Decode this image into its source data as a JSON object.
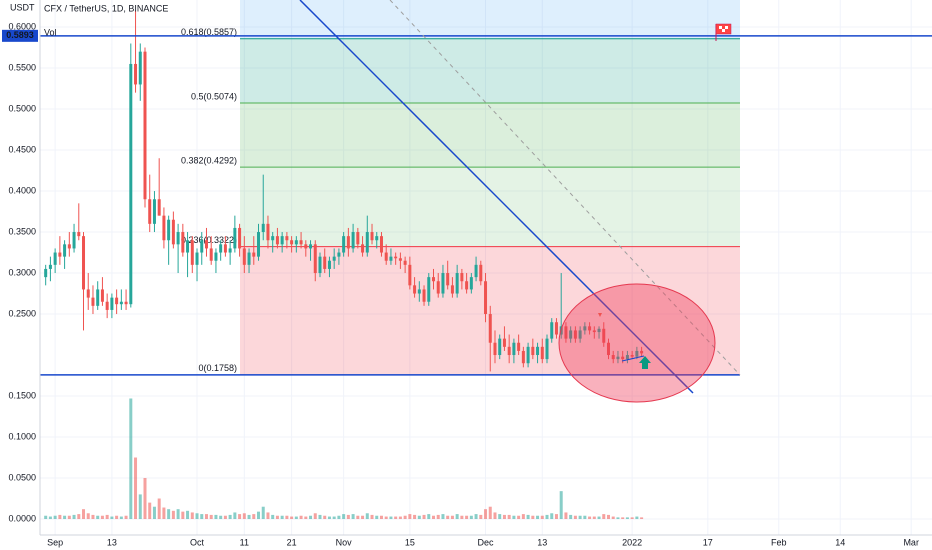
{
  "chart_data": {
    "type": "candlestick",
    "title": "CFX / TetherUS, 1D, BINANCE",
    "volume_label": "Vol",
    "y_unit": "USDT",
    "up_color": "#26a69a",
    "down_color": "#ef5350",
    "grid": true,
    "xlim": [
      -1.2,
      187.4
    ],
    "ylim": [
      -0.0195,
      0.633
    ],
    "xticks": [
      {
        "value": 2,
        "label": "Sep"
      },
      {
        "value": 14,
        "label": "13"
      },
      {
        "value": 32,
        "label": "Oct"
      },
      {
        "value": 42,
        "label": "11"
      },
      {
        "value": 52,
        "label": "21"
      },
      {
        "value": 63,
        "label": "Nov"
      },
      {
        "value": 77,
        "label": "15"
      },
      {
        "value": 93,
        "label": "Dec"
      },
      {
        "value": 105,
        "label": "13"
      },
      {
        "value": 124,
        "label": "2022"
      },
      {
        "value": 140,
        "label": "17"
      },
      {
        "value": 155,
        "label": "Feb"
      },
      {
        "value": 168,
        "label": "14"
      },
      {
        "value": 183,
        "label": "Mar"
      }
    ],
    "yticks": [
      {
        "value": 0,
        "label": "0.0000"
      },
      {
        "value": 0.05,
        "label": "0.0500"
      },
      {
        "value": 0.1,
        "label": "0.1000"
      },
      {
        "value": 0.15,
        "label": "0.1500"
      },
      {
        "value": 0.25,
        "label": "0.2500"
      },
      {
        "value": 0.3,
        "label": "0.3000"
      },
      {
        "value": 0.35,
        "label": "0.3500"
      },
      {
        "value": 0.4,
        "label": "0.4000"
      },
      {
        "value": 0.45,
        "label": "0.4500"
      },
      {
        "value": 0.5,
        "label": "0.5000"
      },
      {
        "value": 0.55,
        "label": "0.5500"
      },
      {
        "value": 0.6,
        "label": "0.6000"
      }
    ],
    "price_line": 0.5893,
    "price_line_color": "#1848cc",
    "fib": [
      {
        "value": 0.1758,
        "label": "0(0.1758)",
        "color": "#787b86",
        "band": "rgba(242,54,69,0.2)"
      },
      {
        "value": 0.3322,
        "label": "0.236(0.3322)",
        "color": "#f23645",
        "band": "rgba(76,175,80,0.15)"
      },
      {
        "value": 0.4292,
        "label": "0.382(0.4292)",
        "color": "#4caf50",
        "band": "rgba(76,175,80,0.2)"
      },
      {
        "value": 0.5074,
        "label": "0.5(0.5074)",
        "color": "#4caf50",
        "band": "rgba(8,153,129,0.2)"
      },
      {
        "value": 0.5857,
        "label": "0.618(0.5857)",
        "color": "#089981",
        "band": "rgba(33,150,243,0.15)"
      }
    ],
    "candles": [
      [
        0.295,
        0.31,
        0.285,
        0.305
      ],
      [
        0.305,
        0.32,
        0.29,
        0.31
      ],
      [
        0.31,
        0.33,
        0.3,
        0.325
      ],
      [
        0.325,
        0.345,
        0.31,
        0.32
      ],
      [
        0.32,
        0.34,
        0.305,
        0.335
      ],
      [
        0.335,
        0.35,
        0.32,
        0.33
      ],
      [
        0.33,
        0.36,
        0.325,
        0.35
      ],
      [
        0.35,
        0.385,
        0.34,
        0.345
      ],
      [
        0.345,
        0.35,
        0.23,
        0.28
      ],
      [
        0.28,
        0.3,
        0.255,
        0.27
      ],
      [
        0.27,
        0.285,
        0.25,
        0.26
      ],
      [
        0.26,
        0.29,
        0.255,
        0.28
      ],
      [
        0.28,
        0.295,
        0.26,
        0.265
      ],
      [
        0.265,
        0.275,
        0.245,
        0.255
      ],
      [
        0.255,
        0.275,
        0.245,
        0.27
      ],
      [
        0.27,
        0.28,
        0.25,
        0.262
      ],
      [
        0.262,
        0.28,
        0.255,
        0.265
      ],
      [
        0.265,
        0.28,
        0.255,
        0.262
      ],
      [
        0.262,
        0.58,
        0.258,
        0.555
      ],
      [
        0.555,
        0.62,
        0.52,
        0.53
      ],
      [
        0.53,
        0.58,
        0.51,
        0.57
      ],
      [
        0.57,
        0.575,
        0.38,
        0.39
      ],
      [
        0.39,
        0.42,
        0.35,
        0.36
      ],
      [
        0.36,
        0.4,
        0.35,
        0.39
      ],
      [
        0.39,
        0.44,
        0.37,
        0.37
      ],
      [
        0.37,
        0.38,
        0.33,
        0.34
      ],
      [
        0.34,
        0.37,
        0.31,
        0.365
      ],
      [
        0.365,
        0.375,
        0.33,
        0.335
      ],
      [
        0.335,
        0.36,
        0.3,
        0.35
      ],
      [
        0.35,
        0.36,
        0.32,
        0.325
      ],
      [
        0.325,
        0.35,
        0.295,
        0.34
      ],
      [
        0.34,
        0.345,
        0.3,
        0.31
      ],
      [
        0.31,
        0.33,
        0.29,
        0.325
      ],
      [
        0.325,
        0.35,
        0.31,
        0.34
      ],
      [
        0.34,
        0.355,
        0.32,
        0.33
      ],
      [
        0.33,
        0.345,
        0.31,
        0.315
      ],
      [
        0.315,
        0.33,
        0.3,
        0.325
      ],
      [
        0.325,
        0.34,
        0.315,
        0.335
      ],
      [
        0.335,
        0.345,
        0.32,
        0.325
      ],
      [
        0.325,
        0.34,
        0.31,
        0.33
      ],
      [
        0.33,
        0.37,
        0.325,
        0.355
      ],
      [
        0.355,
        0.36,
        0.32,
        0.33
      ],
      [
        0.33,
        0.345,
        0.3,
        0.31
      ],
      [
        0.31,
        0.33,
        0.3,
        0.325
      ],
      [
        0.325,
        0.345,
        0.31,
        0.32
      ],
      [
        0.32,
        0.36,
        0.315,
        0.35
      ],
      [
        0.35,
        0.42,
        0.34,
        0.36
      ],
      [
        0.36,
        0.37,
        0.33,
        0.34
      ],
      [
        0.34,
        0.35,
        0.325,
        0.345
      ],
      [
        0.345,
        0.355,
        0.33,
        0.335
      ],
      [
        0.335,
        0.35,
        0.325,
        0.345
      ],
      [
        0.345,
        0.35,
        0.33,
        0.34
      ],
      [
        0.34,
        0.345,
        0.325,
        0.335
      ],
      [
        0.335,
        0.345,
        0.325,
        0.34
      ],
      [
        0.34,
        0.35,
        0.33,
        0.335
      ],
      [
        0.335,
        0.34,
        0.32,
        0.33
      ],
      [
        0.33,
        0.34,
        0.315,
        0.335
      ],
      [
        0.335,
        0.34,
        0.29,
        0.3
      ],
      [
        0.3,
        0.325,
        0.295,
        0.32
      ],
      [
        0.32,
        0.33,
        0.3,
        0.305
      ],
      [
        0.305,
        0.32,
        0.295,
        0.315
      ],
      [
        0.315,
        0.33,
        0.305,
        0.32
      ],
      [
        0.32,
        0.33,
        0.31,
        0.325
      ],
      [
        0.325,
        0.35,
        0.32,
        0.345
      ],
      [
        0.345,
        0.355,
        0.32,
        0.33
      ],
      [
        0.33,
        0.36,
        0.325,
        0.35
      ],
      [
        0.35,
        0.355,
        0.33,
        0.335
      ],
      [
        0.335,
        0.345,
        0.32,
        0.325
      ],
      [
        0.325,
        0.37,
        0.32,
        0.35
      ],
      [
        0.35,
        0.36,
        0.335,
        0.34
      ],
      [
        0.34,
        0.35,
        0.33,
        0.345
      ],
      [
        0.345,
        0.35,
        0.32,
        0.325
      ],
      [
        0.325,
        0.335,
        0.31,
        0.315
      ],
      [
        0.315,
        0.33,
        0.31,
        0.32
      ],
      [
        0.32,
        0.325,
        0.31,
        0.318
      ],
      [
        0.318,
        0.325,
        0.305,
        0.315
      ],
      [
        0.315,
        0.32,
        0.3,
        0.31
      ],
      [
        0.31,
        0.32,
        0.28,
        0.285
      ],
      [
        0.285,
        0.295,
        0.27,
        0.275
      ],
      [
        0.275,
        0.29,
        0.265,
        0.28
      ],
      [
        0.28,
        0.285,
        0.26,
        0.265
      ],
      [
        0.265,
        0.3,
        0.26,
        0.295
      ],
      [
        0.295,
        0.305,
        0.28,
        0.29
      ],
      [
        0.29,
        0.3,
        0.27,
        0.275
      ],
      [
        0.275,
        0.31,
        0.27,
        0.3
      ],
      [
        0.3,
        0.315,
        0.28,
        0.285
      ],
      [
        0.285,
        0.295,
        0.27,
        0.275
      ],
      [
        0.275,
        0.31,
        0.27,
        0.3
      ],
      [
        0.3,
        0.305,
        0.28,
        0.29
      ],
      [
        0.29,
        0.3,
        0.275,
        0.28
      ],
      [
        0.28,
        0.3,
        0.275,
        0.295
      ],
      [
        0.295,
        0.32,
        0.29,
        0.31
      ],
      [
        0.31,
        0.315,
        0.285,
        0.29
      ],
      [
        0.29,
        0.3,
        0.24,
        0.25
      ],
      [
        0.25,
        0.26,
        0.18,
        0.215
      ],
      [
        0.215,
        0.23,
        0.19,
        0.2
      ],
      [
        0.2,
        0.225,
        0.195,
        0.22
      ],
      [
        0.22,
        0.235,
        0.205,
        0.21
      ],
      [
        0.21,
        0.225,
        0.19,
        0.2
      ],
      [
        0.2,
        0.22,
        0.19,
        0.215
      ],
      [
        0.215,
        0.225,
        0.2,
        0.205
      ],
      [
        0.205,
        0.21,
        0.185,
        0.19
      ],
      [
        0.19,
        0.215,
        0.185,
        0.21
      ],
      [
        0.21,
        0.22,
        0.195,
        0.2
      ],
      [
        0.2,
        0.215,
        0.19,
        0.21
      ],
      [
        0.21,
        0.22,
        0.19,
        0.195
      ],
      [
        0.195,
        0.225,
        0.19,
        0.22
      ],
      [
        0.22,
        0.245,
        0.215,
        0.24
      ],
      [
        0.24,
        0.245,
        0.22,
        0.225
      ],
      [
        0.225,
        0.3,
        0.22,
        0.235
      ],
      [
        0.235,
        0.24,
        0.215,
        0.22
      ],
      [
        0.22,
        0.235,
        0.215,
        0.23
      ],
      [
        0.23,
        0.235,
        0.215,
        0.22
      ],
      [
        0.22,
        0.235,
        0.215,
        0.23
      ],
      [
        0.23,
        0.24,
        0.225,
        0.235
      ],
      [
        0.235,
        0.24,
        0.225,
        0.23
      ],
      [
        0.23,
        0.235,
        0.22,
        0.228
      ],
      [
        0.228,
        0.235,
        0.22,
        0.232
      ],
      [
        0.232,
        0.24,
        0.21,
        0.215
      ],
      [
        0.215,
        0.22,
        0.195,
        0.2
      ],
      [
        0.2,
        0.205,
        0.19,
        0.195
      ],
      [
        0.195,
        0.205,
        0.19,
        0.198
      ],
      [
        0.198,
        0.205,
        0.19,
        0.195
      ],
      [
        0.195,
        0.205,
        0.19,
        0.2
      ],
      [
        0.2,
        0.205,
        0.195,
        0.198
      ],
      [
        0.198,
        0.21,
        0.195,
        0.205
      ],
      [
        0.205,
        0.21,
        0.198,
        0.202
      ]
    ],
    "volumes": [
      0.004,
      0.003,
      0.004,
      0.005,
      0.004,
      0.004,
      0.005,
      0.006,
      0.012,
      0.007,
      0.005,
      0.004,
      0.004,
      0.005,
      0.003,
      0.004,
      0.003,
      0.004,
      0.147,
      0.075,
      0.03,
      0.05,
      0.02,
      0.015,
      0.025,
      0.014,
      0.012,
      0.01,
      0.012,
      0.009,
      0.01,
      0.008,
      0.007,
      0.006,
      0.006,
      0.005,
      0.005,
      0.004,
      0.004,
      0.005,
      0.008,
      0.006,
      0.007,
      0.005,
      0.006,
      0.009,
      0.015,
      0.008,
      0.005,
      0.004,
      0.004,
      0.004,
      0.003,
      0.003,
      0.004,
      0.003,
      0.004,
      0.007,
      0.005,
      0.004,
      0.003,
      0.003,
      0.004,
      0.006,
      0.005,
      0.006,
      0.004,
      0.004,
      0.007,
      0.005,
      0.004,
      0.004,
      0.003,
      0.003,
      0.003,
      0.003,
      0.004,
      0.006,
      0.005,
      0.004,
      0.005,
      0.006,
      0.004,
      0.005,
      0.006,
      0.004,
      0.004,
      0.006,
      0.004,
      0.004,
      0.004,
      0.006,
      0.005,
      0.012,
      0.015,
      0.008,
      0.006,
      0.005,
      0.005,
      0.004,
      0.004,
      0.006,
      0.005,
      0.004,
      0.004,
      0.004,
      0.005,
      0.007,
      0.006,
      0.034,
      0.008,
      0.005,
      0.004,
      0.004,
      0.004,
      0.003,
      0.003,
      0.003,
      0.006,
      0.005,
      0.003,
      0.002,
      0.002,
      0.002,
      0.002,
      0.003,
      0.002
    ]
  }
}
